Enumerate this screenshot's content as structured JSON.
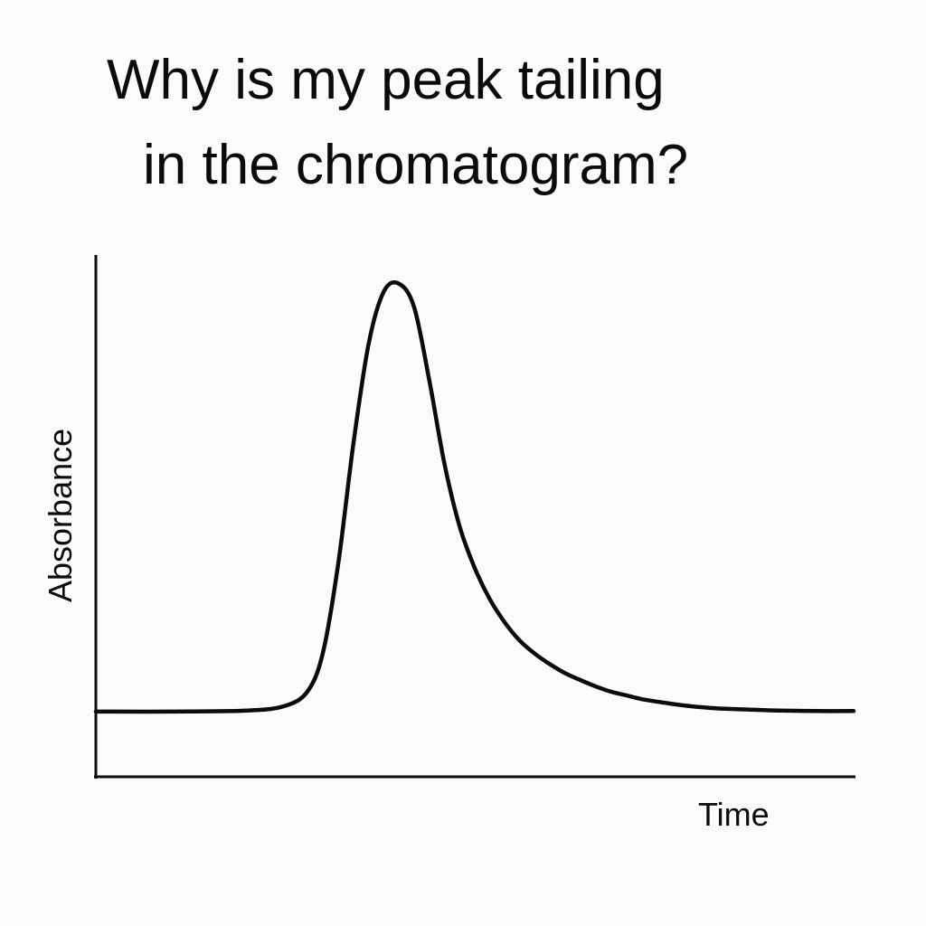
{
  "title_lines": [
    "Why is my peak tailing",
    "in the chromatogram?"
  ],
  "chart_data": {
    "type": "line",
    "title": "Why is my peak tailing in the chromatogram?",
    "xlabel": "Time",
    "ylabel": "Absorbance",
    "x_ticks": [],
    "y_ticks": [],
    "grid": false,
    "legend": "none",
    "xlim": [
      0,
      100
    ],
    "ylim": [
      0,
      100
    ],
    "series": [
      {
        "x": [
          0,
          10,
          20,
          25,
          28,
          30,
          32,
          34,
          36,
          38,
          40,
          42,
          44,
          46,
          48,
          50,
          52,
          54,
          56,
          58,
          60,
          62,
          64,
          66,
          68,
          70,
          72,
          75,
          78,
          82,
          86,
          90,
          95,
          100
        ],
        "y": [
          12.5,
          12.5,
          12.7,
          13.6,
          16.5,
          24,
          41,
          64,
          83,
          93,
          94.5,
          90,
          76,
          60,
          48,
          40,
          34,
          29.5,
          26,
          23.5,
          21.5,
          19.8,
          18.5,
          17.3,
          16.3,
          15.6,
          14.9,
          14.2,
          13.6,
          13.1,
          12.9,
          12.7,
          12.6,
          12.6
        ]
      }
    ],
    "line_color": "#0b0b0b"
  }
}
